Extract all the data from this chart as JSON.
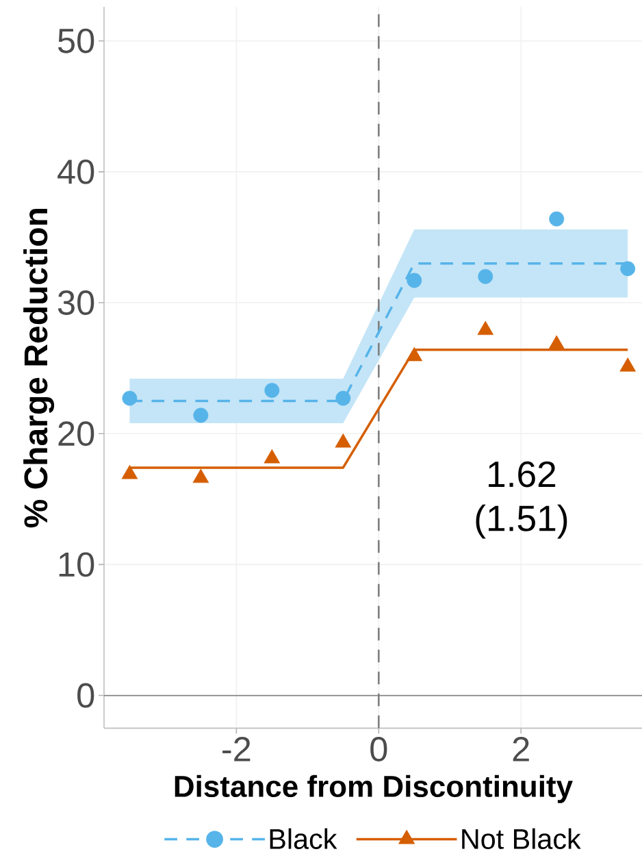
{
  "chart_data": {
    "type": "scatter",
    "xlabel": "Distance from Discontinuity",
    "ylabel": "% Charge Reduction",
    "xlim": [
      -3.86,
      3.7
    ],
    "ylim": [
      -2.5,
      52.6
    ],
    "xticks": [
      -2,
      0,
      2
    ],
    "yticks": [
      0,
      10,
      20,
      30,
      40,
      50
    ],
    "grid": true,
    "legend": "bottom",
    "series": [
      {
        "name": "Black",
        "marker": "circle",
        "line_style": "dashed",
        "color": "#56b4e9",
        "x": [
          -3.5,
          -2.5,
          -1.5,
          -0.5,
          0.5,
          1.5,
          2.5,
          3.5
        ],
        "values": [
          22.7,
          21.4,
          23.3,
          22.7,
          31.7,
          32.0,
          36.4,
          32.6
        ]
      },
      {
        "type": "line",
        "line_style": "dashed",
        "color": "#56b4e9",
        "x": [
          -3.5,
          -0.5,
          0.5,
          3.5
        ],
        "values": [
          22.5,
          22.5,
          33.0,
          33.0
        ],
        "lower": [
          20.8,
          20.8,
          30.4,
          30.4
        ],
        "upper": [
          24.2,
          24.2,
          35.6,
          35.6
        ]
      },
      {
        "name": "Not Black",
        "marker": "triangle",
        "line_style": "solid",
        "color": "#d55e00",
        "x": [
          -3.5,
          -2.5,
          -1.5,
          -0.5,
          0.5,
          1.5,
          2.5,
          3.5
        ],
        "values": [
          16.9,
          16.6,
          18.1,
          19.3,
          25.9,
          27.9,
          26.8,
          25.1
        ]
      },
      {
        "type": "line",
        "line_style": "solid",
        "color": "#d55e00",
        "x": [
          -3.5,
          -0.5,
          0.5,
          3.5
        ],
        "values": [
          17.4,
          17.4,
          26.4,
          26.4
        ]
      }
    ],
    "ref_lines": [
      {
        "axis": "x",
        "value": 0,
        "line_style": "dashed",
        "color": "#808080"
      },
      {
        "axis": "y",
        "value": 0,
        "line_style": "solid",
        "color": "#808080"
      }
    ],
    "annotations": [
      "1.62",
      "(1.51)"
    ]
  }
}
